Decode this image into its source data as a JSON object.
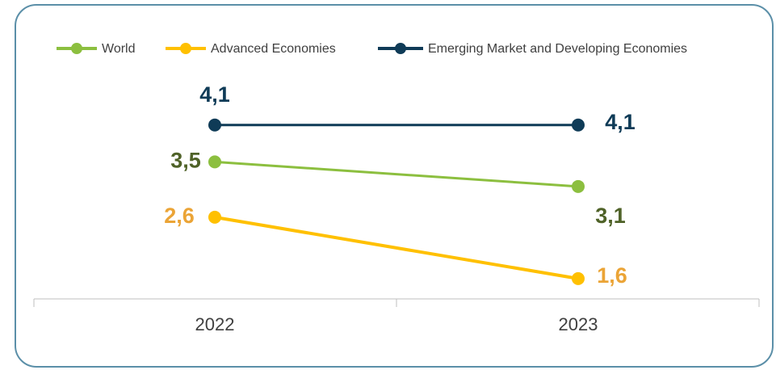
{
  "chart_data": {
    "type": "line",
    "categories": [
      "2022",
      "2023"
    ],
    "series": [
      {
        "name": "World",
        "color": "#8cbf3f",
        "label_color": "#4f6228",
        "values": [
          3.5,
          3.1
        ],
        "value_labels": [
          "3,5",
          "3,1"
        ]
      },
      {
        "name": "Advanced Economies",
        "color": "#ffc000",
        "label_color": "#eba436",
        "values": [
          2.6,
          1.6
        ],
        "value_labels": [
          "2,6",
          "1,6"
        ]
      },
      {
        "name": "Emerging Market and Developing Economies",
        "color": "#0f3b57",
        "label_color": "#0f3b57",
        "values": [
          4.1,
          4.1
        ],
        "value_labels": [
          "4,1",
          "4,1"
        ]
      }
    ],
    "ylim": [
      1.27,
      4.82
    ],
    "legend": "top"
  }
}
